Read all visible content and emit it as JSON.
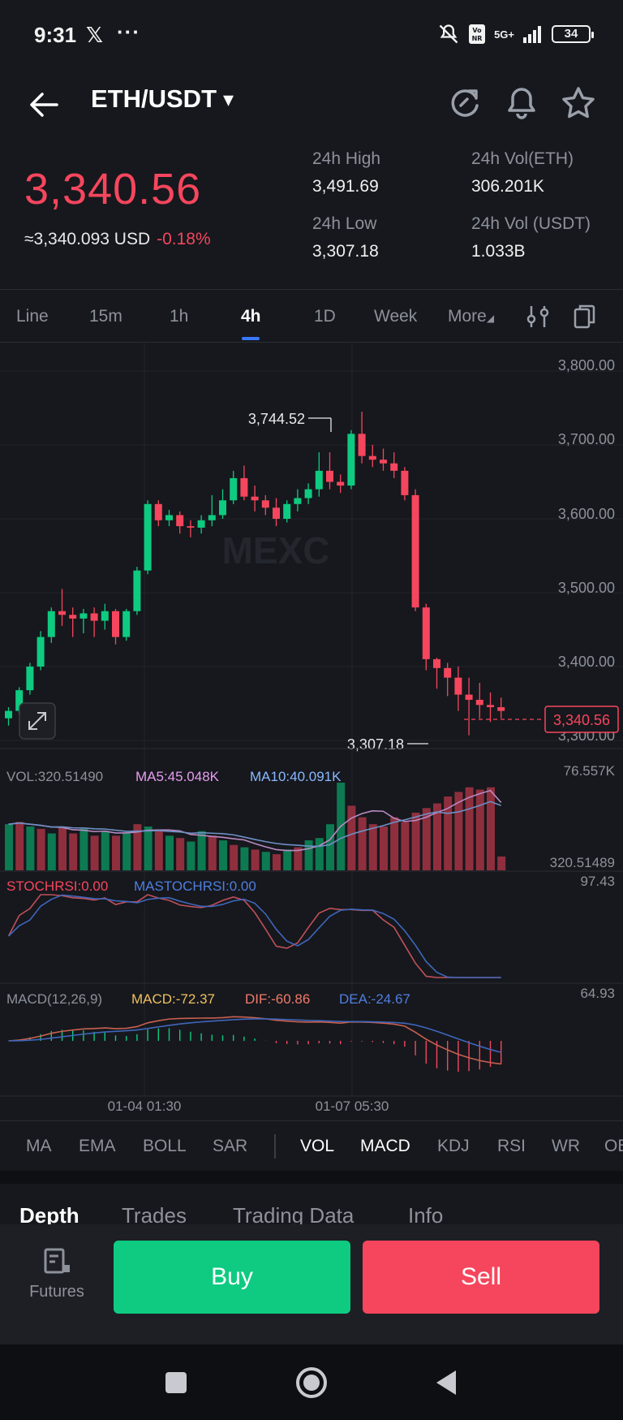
{
  "status_bar": {
    "time": "9:31",
    "x_glyph": "𝕏",
    "dots": "···",
    "network": "5G+",
    "battery": "34"
  },
  "header": {
    "pair": "ETH/USDT",
    "dropdown_glyph": "▾"
  },
  "ticker": {
    "last_price": "3,340.56",
    "usd_equiv": "≈3,340.093 USD",
    "change_pct": "-0.18%",
    "high_label": "24h High",
    "high_value": "3,491.69",
    "low_label": "24h Low",
    "low_value": "3,307.18",
    "vol_eth_label": "24h Vol(ETH)",
    "vol_eth_value": "306.201K",
    "vol_usdt_label": "24h Vol (USDT)",
    "vol_usdt_value": "1.033B"
  },
  "timeframes": [
    "Line",
    "15m",
    "1h",
    "4h",
    "1D",
    "Week",
    "More"
  ],
  "active_timeframe": "4h",
  "chart": {
    "watermark": "MEXC",
    "price_axis": [
      "3,800.00",
      "3,700.00",
      "3,600.00",
      "3,500.00",
      "3,400.00",
      "3,300.00"
    ],
    "current_price_tag": "3,340.56",
    "high_marker": "3,744.52",
    "low_marker": "3,307.18",
    "vol_label": "VOL:320.51490",
    "ma5_label": "MA5:45.048K",
    "ma10_label": "MA10:40.091K",
    "vol_max": "76.557K",
    "vol_min": "320.51489",
    "stoch_label": "STOCHRSI:0.00",
    "mastoch_label": "MASTOCHRSI:0.00",
    "stoch_max": "97.43",
    "macd_title": "MACD(12,26,9)",
    "macd_label": "MACD:-72.37",
    "dif_label": "DIF:-60.86",
    "dea_label": "DEA:-24.67",
    "macd_max": "64.93",
    "time_labels": [
      "01-04 01:30",
      "01-07 05:30"
    ]
  },
  "chart_data": {
    "type": "candlestick",
    "ylim": [
      3300,
      3800
    ],
    "candles": [
      [
        3330,
        3340,
        3320,
        3345
      ],
      [
        3340,
        3368,
        3335,
        3372
      ],
      [
        3368,
        3400,
        3362,
        3405
      ],
      [
        3400,
        3440,
        3395,
        3448
      ],
      [
        3440,
        3475,
        3432,
        3480
      ],
      [
        3475,
        3470,
        3455,
        3505
      ],
      [
        3470,
        3465,
        3440,
        3480
      ],
      [
        3465,
        3472,
        3445,
        3478
      ],
      [
        3472,
        3462,
        3440,
        3480
      ],
      [
        3462,
        3475,
        3450,
        3485
      ],
      [
        3475,
        3440,
        3430,
        3478
      ],
      [
        3440,
        3475,
        3435,
        3478
      ],
      [
        3475,
        3530,
        3470,
        3535
      ],
      [
        3530,
        3620,
        3525,
        3625
      ],
      [
        3620,
        3598,
        3590,
        3625
      ],
      [
        3598,
        3605,
        3590,
        3612
      ],
      [
        3605,
        3590,
        3580,
        3610
      ],
      [
        3590,
        3588,
        3575,
        3598
      ],
      [
        3588,
        3598,
        3580,
        3605
      ],
      [
        3598,
        3605,
        3590,
        3632
      ],
      [
        3605,
        3625,
        3600,
        3640
      ],
      [
        3625,
        3655,
        3620,
        3665
      ],
      [
        3655,
        3630,
        3625,
        3672
      ],
      [
        3630,
        3625,
        3610,
        3645
      ],
      [
        3625,
        3615,
        3605,
        3632
      ],
      [
        3615,
        3600,
        3590,
        3628
      ],
      [
        3600,
        3620,
        3595,
        3625
      ],
      [
        3620,
        3628,
        3610,
        3640
      ],
      [
        3628,
        3640,
        3620,
        3648
      ],
      [
        3640,
        3665,
        3630,
        3690
      ],
      [
        3665,
        3650,
        3640,
        3690
      ],
      [
        3650,
        3645,
        3635,
        3660
      ],
      [
        3645,
        3715,
        3640,
        3720
      ],
      [
        3715,
        3685,
        3675,
        3745
      ],
      [
        3685,
        3680,
        3670,
        3700
      ],
      [
        3680,
        3675,
        3665,
        3695
      ],
      [
        3675,
        3665,
        3655,
        3690
      ],
      [
        3665,
        3632,
        3625,
        3670
      ],
      [
        3632,
        3480,
        3475,
        3640
      ],
      [
        3480,
        3410,
        3395,
        3485
      ],
      [
        3410,
        3398,
        3370,
        3412
      ],
      [
        3398,
        3385,
        3360,
        3405
      ],
      [
        3385,
        3362,
        3340,
        3400
      ],
      [
        3362,
        3355,
        3307,
        3385
      ],
      [
        3355,
        3348,
        3330,
        3378
      ],
      [
        3348,
        3345,
        3325,
        3365
      ],
      [
        3345,
        3340,
        3330,
        3358
      ]
    ],
    "volume": [
      [
        40,
        "u"
      ],
      [
        42,
        "d"
      ],
      [
        38,
        "u"
      ],
      [
        36,
        "d"
      ],
      [
        32,
        "u"
      ],
      [
        38,
        "d"
      ],
      [
        32,
        "d"
      ],
      [
        36,
        "u"
      ],
      [
        30,
        "d"
      ],
      [
        34,
        "u"
      ],
      [
        30,
        "d"
      ],
      [
        32,
        "u"
      ],
      [
        40,
        "d"
      ],
      [
        38,
        "u"
      ],
      [
        35,
        "d"
      ],
      [
        30,
        "u"
      ],
      [
        28,
        "d"
      ],
      [
        25,
        "u"
      ],
      [
        34,
        "u"
      ],
      [
        30,
        "d"
      ],
      [
        26,
        "u"
      ],
      [
        22,
        "d"
      ],
      [
        20,
        "u"
      ],
      [
        18,
        "d"
      ],
      [
        16,
        "u"
      ],
      [
        14,
        "d"
      ],
      [
        18,
        "u"
      ],
      [
        20,
        "d"
      ],
      [
        26,
        "u"
      ],
      [
        28,
        "u"
      ],
      [
        40,
        "u"
      ],
      [
        76,
        "u"
      ],
      [
        56,
        "d"
      ],
      [
        46,
        "d"
      ],
      [
        40,
        "d"
      ],
      [
        38,
        "d"
      ],
      [
        46,
        "d"
      ],
      [
        42,
        "d"
      ],
      [
        50,
        "d"
      ],
      [
        54,
        "d"
      ],
      [
        58,
        "d"
      ],
      [
        64,
        "d"
      ],
      [
        68,
        "d"
      ],
      [
        72,
        "d"
      ],
      [
        70,
        "d"
      ],
      [
        72,
        "d"
      ],
      [
        12,
        "d"
      ]
    ]
  },
  "indicators": [
    "MA",
    "EMA",
    "BOLL",
    "SAR",
    "VOL",
    "MACD",
    "KDJ",
    "RSI",
    "WR",
    "OBV"
  ],
  "active_indicators": [
    "VOL",
    "MACD"
  ],
  "sub_tabs": [
    "Depth",
    "Trades",
    "Trading Data",
    "Info"
  ],
  "bottom": {
    "futures": "Futures",
    "buy": "Buy",
    "sell": "Sell"
  },
  "colors": {
    "up": "#0ecb81",
    "down": "#f6465d",
    "accent": "#3a78ff",
    "bg": "#16181d"
  }
}
